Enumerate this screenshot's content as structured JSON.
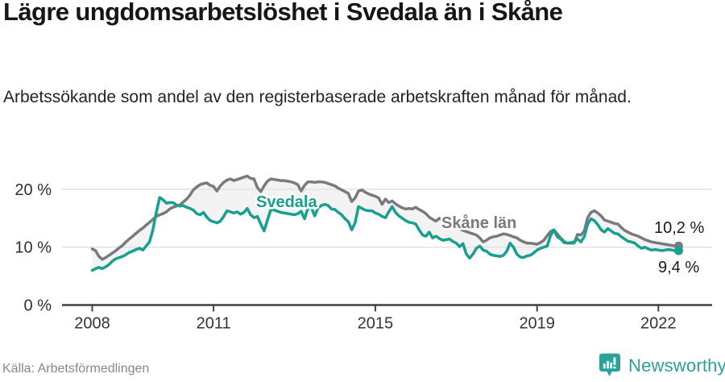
{
  "header": {
    "title": "Lägre ungdomsarbetslöshet i Svedala än i Skåne",
    "subtitle": "Arbetssökande som andel av den registerbaserade arbetskraften månad för månad."
  },
  "chart_data": {
    "type": "line",
    "title": "Lägre ungdomsarbetslöshet i Svedala än i Skåne",
    "subtitle": "Arbetssökande som andel av den registerbaserade arbetskraften månad för månad.",
    "frequency": "monthly",
    "start_year": 2008,
    "x_axis": {
      "tick_years": [
        2008,
        2011,
        2015,
        2019,
        2022
      ],
      "tick_labels": [
        "2008",
        "2011",
        "2015",
        "2019",
        "2022"
      ]
    },
    "y_axis": {
      "ticks": [
        0,
        10,
        20
      ],
      "tick_labels": [
        "0 %",
        "10 %",
        "20 %"
      ],
      "ylim": [
        0,
        24
      ],
      "unit": "%"
    },
    "grid": "horizontal",
    "band_between_series": true,
    "legend_position": "inline-labels",
    "series": [
      {
        "name": "Skåne län",
        "color": "#7a7a7e",
        "end_value": 10.2,
        "end_label": "10,2 %",
        "values": [
          9.7,
          9.4,
          8.4,
          7.9,
          8.2,
          8.6,
          9.0,
          9.4,
          9.9,
          10.3,
          10.9,
          11.4,
          11.9,
          12.4,
          12.9,
          13.3,
          13.8,
          14.3,
          14.8,
          15.3,
          15.6,
          15.8,
          16.1,
          16.6,
          16.9,
          17.1,
          17.3,
          17.8,
          18.3,
          19.0,
          19.9,
          20.4,
          20.8,
          21.0,
          21.1,
          20.7,
          20.5,
          19.7,
          20.6,
          21.2,
          21.6,
          21.8,
          21.5,
          21.7,
          21.9,
          22.1,
          22.3,
          21.9,
          21.8,
          20.3,
          19.6,
          20.6,
          21.4,
          21.8,
          21.7,
          21.6,
          21.5,
          21.5,
          21.4,
          21.3,
          21.1,
          20.8,
          19.7,
          20.7,
          21.3,
          21.3,
          21.2,
          21.3,
          21.3,
          21.2,
          21.0,
          20.8,
          20.6,
          20.2,
          19.9,
          19.6,
          19.3,
          17.9,
          18.5,
          19.7,
          19.9,
          19.5,
          19.2,
          19.0,
          18.8,
          18.5,
          17.4,
          18.3,
          17.7,
          18.0,
          17.5,
          17.1,
          16.8,
          16.6,
          16.7,
          16.6,
          16.9,
          16.5,
          16.2,
          15.8,
          15.2,
          14.8,
          14.5,
          15.0,
          14.6,
          14.3,
          14.0,
          13.8,
          13.6,
          13.2,
          12.9,
          12.7,
          12.5,
          12.3,
          12.1,
          11.6,
          10.9,
          11.2,
          11.6,
          11.8,
          11.9,
          12.1,
          12.3,
          12.2,
          12.0,
          11.8,
          11.6,
          11.2,
          10.9,
          10.7,
          10.7,
          10.6,
          10.5,
          10.8,
          11.2,
          12.0,
          12.7,
          13.0,
          12.3,
          11.6,
          11.0,
          10.7,
          10.7,
          10.7,
          12.2,
          12.1,
          12.8,
          15.1,
          16.0,
          16.3,
          15.9,
          15.4,
          14.7,
          14.5,
          14.3,
          14.1,
          14.0,
          13.4,
          12.9,
          12.6,
          12.3,
          12.1,
          11.9,
          11.6,
          11.3,
          11.1,
          10.9,
          10.8,
          10.7,
          10.6,
          10.5,
          10.4,
          10.3,
          10.2,
          10.2
        ]
      },
      {
        "name": "Svedala",
        "color": "#17a08f",
        "end_value": 9.4,
        "end_label": "9,4 %",
        "values": [
          6.0,
          6.3,
          6.5,
          6.3,
          6.6,
          7.0,
          7.6,
          8.0,
          8.2,
          8.4,
          8.7,
          9.1,
          9.3,
          9.6,
          9.8,
          9.5,
          10.2,
          10.9,
          13.0,
          16.0,
          18.6,
          18.2,
          17.6,
          17.7,
          17.7,
          17.3,
          17.1,
          17.2,
          16.9,
          16.7,
          16.4,
          15.8,
          15.6,
          16.0,
          15.2,
          14.6,
          14.4,
          14.2,
          14.5,
          15.3,
          16.3,
          16.1,
          15.9,
          16.1,
          15.7,
          16.0,
          16.7,
          15.6,
          15.1,
          15.3,
          14.0,
          12.8,
          14.7,
          16.5,
          16.4,
          16.2,
          16.0,
          15.9,
          15.8,
          15.7,
          15.6,
          15.8,
          16.2,
          14.9,
          16.7,
          16.9,
          15.4,
          16.8,
          17.2,
          17.4,
          17.2,
          16.6,
          16.5,
          16.0,
          15.6,
          14.9,
          14.4,
          13.0,
          14.2,
          17.0,
          16.7,
          16.4,
          16.3,
          16.3,
          15.9,
          15.7,
          15.3,
          15.1,
          16.1,
          17.0,
          16.0,
          15.4,
          15.0,
          14.6,
          14.3,
          14.2,
          14.0,
          13.0,
          12.1,
          11.9,
          12.6,
          11.6,
          11.9,
          11.5,
          11.2,
          11.3,
          11.4,
          11.0,
          10.7,
          10.1,
          10.6,
          8.8,
          8.1,
          8.8,
          9.8,
          10.2,
          9.5,
          9.3,
          8.8,
          8.6,
          8.5,
          8.4,
          8.6,
          9.3,
          10.7,
          10.0,
          8.8,
          8.3,
          8.2,
          8.5,
          8.6,
          9.0,
          9.5,
          9.8,
          10.0,
          10.2,
          12.0,
          13.0,
          11.8,
          11.4,
          10.8,
          10.7,
          10.8,
          10.9,
          11.4,
          10.9,
          11.8,
          14.0,
          14.9,
          14.6,
          13.9,
          13.0,
          12.6,
          13.2,
          12.8,
          12.4,
          12.3,
          11.8,
          11.4,
          11.0,
          10.9,
          10.7,
          10.2,
          9.8,
          10.0,
          9.7,
          9.5,
          9.6,
          9.5,
          9.4,
          9.5,
          9.6,
          9.5,
          9.4,
          9.4
        ]
      }
    ]
  },
  "footer": {
    "source": "Källa: Arbetsförmedlingen",
    "logo_text": "Newsworthy"
  },
  "colors": {
    "svedala": "#17a08f",
    "skane": "#7a7a7e",
    "band": "#f3f3f4",
    "gridline": "#e3e3e4",
    "axis": "#3f4040",
    "logo_teal": "#2ba19a"
  }
}
